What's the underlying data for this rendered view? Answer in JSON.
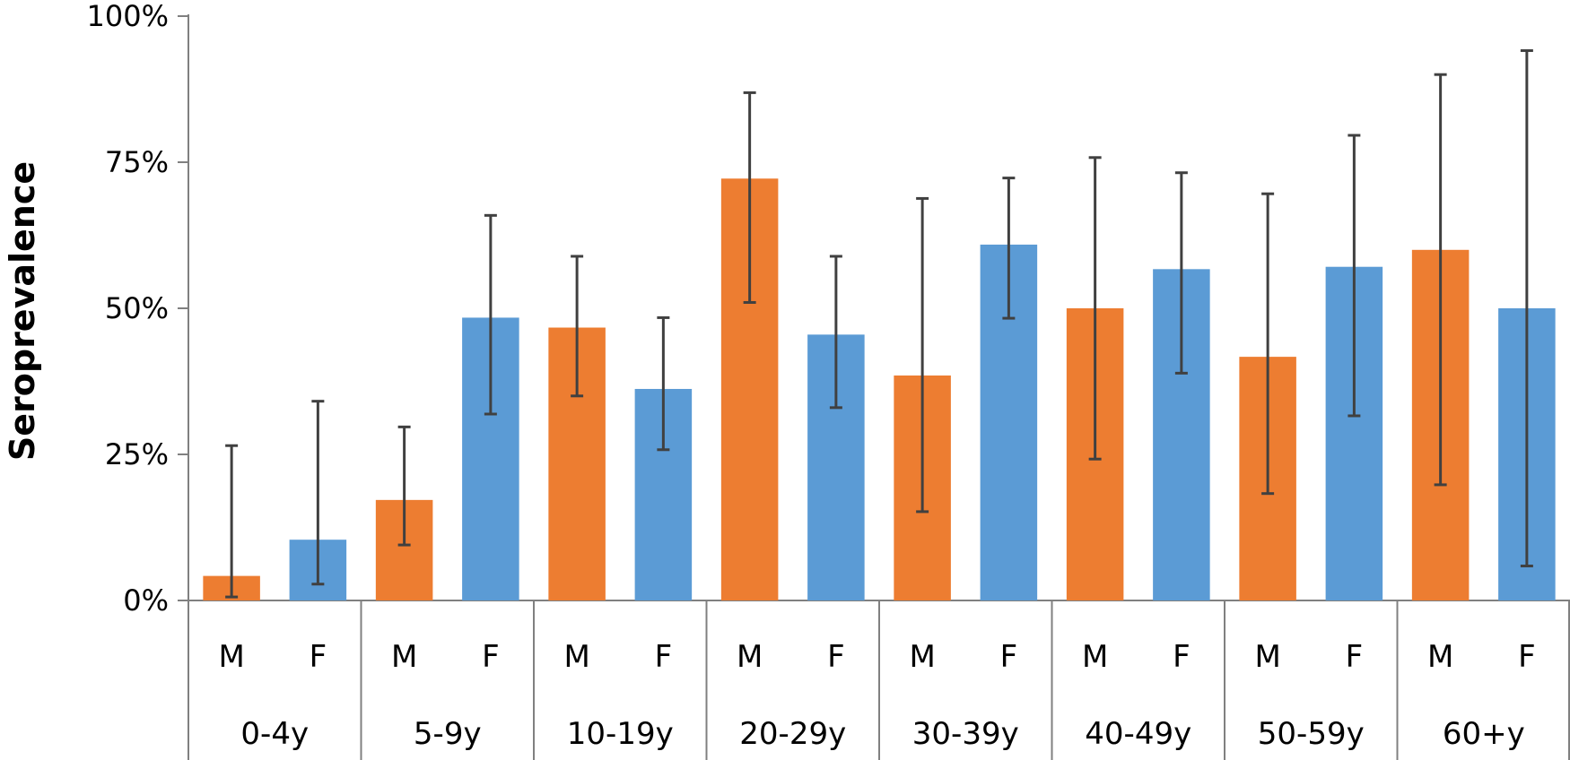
{
  "chart_data": {
    "type": "bar",
    "title": "",
    "ylabel": "Seroprevalence",
    "xlabel": "",
    "ylim": [
      0,
      100
    ],
    "y_unit": "%",
    "y_ticks": [
      "0%",
      "25%",
      "50%",
      "75%",
      "100%"
    ],
    "y_tick_values": [
      0,
      25,
      50,
      75,
      100
    ],
    "grid": false,
    "categories": [
      "0-4y",
      "5-9y",
      "10-19y",
      "20-29y",
      "30-39y",
      "40-49y",
      "50-59y",
      "60+y"
    ],
    "sexes": [
      "M",
      "F"
    ],
    "series": [
      {
        "key": "M",
        "color": "#ED7D31",
        "values": [
          4.2,
          17.2,
          46.7,
          72.2,
          38.5,
          50.0,
          41.7,
          60.0
        ],
        "ci_low": [
          0.6,
          9.5,
          35.0,
          51.0,
          15.2,
          24.2,
          18.3,
          19.8
        ],
        "ci_high": [
          26.5,
          29.7,
          58.9,
          86.9,
          68.8,
          75.8,
          69.6,
          90.0
        ]
      },
      {
        "key": "F",
        "color": "#5B9BD5",
        "values": [
          10.4,
          48.4,
          36.2,
          45.5,
          60.9,
          56.7,
          57.1,
          50.0
        ],
        "ci_low": [
          2.8,
          31.9,
          25.8,
          33.0,
          48.3,
          38.9,
          31.6,
          5.9
        ],
        "ci_high": [
          34.1,
          65.9,
          48.4,
          58.9,
          72.3,
          73.2,
          79.6,
          94.1
        ]
      }
    ]
  }
}
